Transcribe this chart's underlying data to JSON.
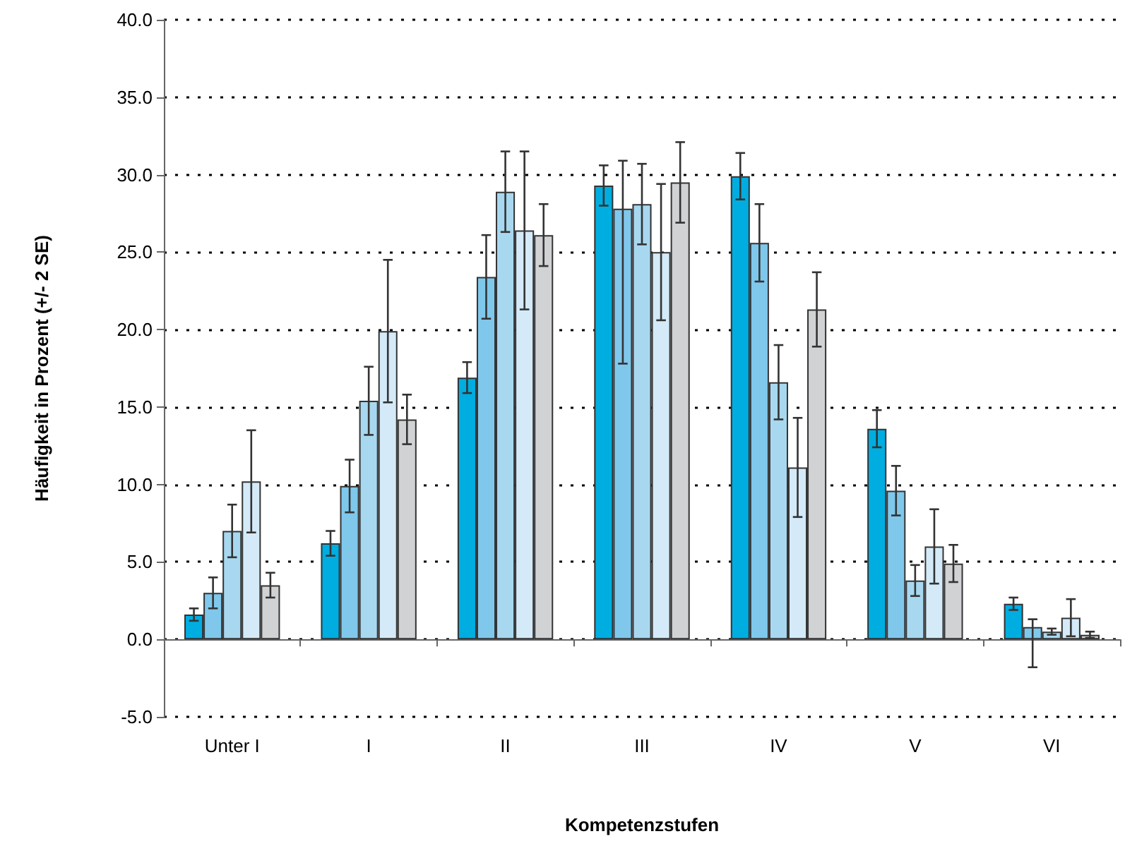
{
  "chart_data": {
    "type": "bar",
    "xlabel": "Kompetenzstufen",
    "ylabel": "Häufigkeit in Prozent (+/- 2 SE)",
    "categories": [
      "Unter I",
      "I",
      "II",
      "III",
      "IV",
      "V",
      "VI"
    ],
    "series": [
      {
        "color": "#00ade0",
        "values": [
          1.6,
          6.2,
          16.9,
          29.3,
          29.9,
          13.6,
          2.3
        ],
        "errors": [
          0.4,
          0.8,
          1.0,
          1.3,
          1.5,
          1.2,
          0.4
        ]
      },
      {
        "color": "#7fc8ec",
        "values": [
          3.0,
          9.9,
          23.4,
          27.8,
          25.6,
          9.6,
          0.8
        ],
        "errors": [
          1.0,
          1.7,
          2.7,
          [
            17.8,
            30.9
          ],
          2.5,
          1.6,
          [
            -1.8,
            1.3
          ]
        ]
      },
      {
        "color": "#a8d8f0",
        "values": [
          7.0,
          15.4,
          28.9,
          28.1,
          16.6,
          3.8,
          0.5
        ],
        "errors": [
          1.7,
          2.2,
          2.6,
          2.6,
          2.4,
          1.0,
          0.2
        ]
      },
      {
        "color": "#d4eaf8",
        "values": [
          10.2,
          19.9,
          26.4,
          25.0,
          11.1,
          6.0,
          1.4
        ],
        "errors": [
          3.3,
          4.6,
          5.1,
          4.4,
          3.2,
          2.4,
          1.2
        ]
      },
      {
        "color": "#d0d2d4",
        "values": [
          3.5,
          14.2,
          26.1,
          29.5,
          21.3,
          4.9,
          0.3
        ],
        "errors": [
          0.8,
          1.6,
          2.0,
          2.6,
          2.4,
          1.2,
          0.2
        ]
      }
    ],
    "ylim": [
      -5,
      40
    ],
    "yticks": [
      {
        "value": -5,
        "label": "-5.0"
      },
      {
        "value": 0,
        "label": "0.0"
      },
      {
        "value": 5,
        "label": "5.0"
      },
      {
        "value": 10,
        "label": "10.0"
      },
      {
        "value": 15,
        "label": "15.0"
      },
      {
        "value": 20,
        "label": "20.0"
      },
      {
        "value": 25,
        "label": "25.0"
      },
      {
        "value": 30,
        "label": "30.0"
      },
      {
        "value": 35,
        "label": "35.0"
      },
      {
        "value": 40,
        "label": "40.0"
      }
    ],
    "grid": "y"
  }
}
